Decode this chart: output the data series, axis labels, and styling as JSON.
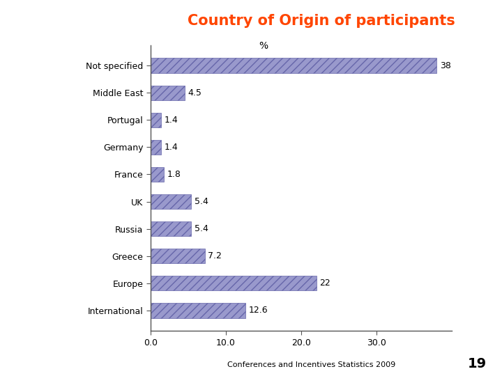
{
  "title": "Country of Origin of participants",
  "title_color": "#FF4500",
  "title_bg_color": "#1a2060",
  "categories": [
    "Not specified",
    "Middle East",
    "Portugal",
    "Germany",
    "France",
    "UK",
    "Russia",
    "Greece",
    "Europe",
    "International"
  ],
  "values": [
    38,
    4.5,
    1.4,
    1.4,
    1.8,
    5.4,
    5.4,
    7.2,
    22,
    12.6
  ],
  "value_labels": [
    "38",
    "4.5",
    "1.4",
    "1.4",
    "1.8",
    "5.4",
    "5.4",
    "7.2",
    "22",
    "12.6"
  ],
  "bar_color": "#9999cc",
  "bar_hatch": "///",
  "bar_edge_color": "#6666aa",
  "xlim": [
    0,
    40
  ],
  "xticks": [
    0.0,
    10.0,
    20.0,
    30.0
  ],
  "xtick_labels": [
    "0.0",
    "10.0",
    "20.0",
    "30.0"
  ],
  "xlabel_percent": "%",
  "xlabel_percent_pos": 15.0,
  "footer_text": "Conferences and Incentives Statistics 2009",
  "page_number": "19",
  "value_fontsize": 9,
  "label_fontsize": 9,
  "tick_fontsize": 9,
  "footer_fontsize": 8,
  "page_fontsize": 14
}
